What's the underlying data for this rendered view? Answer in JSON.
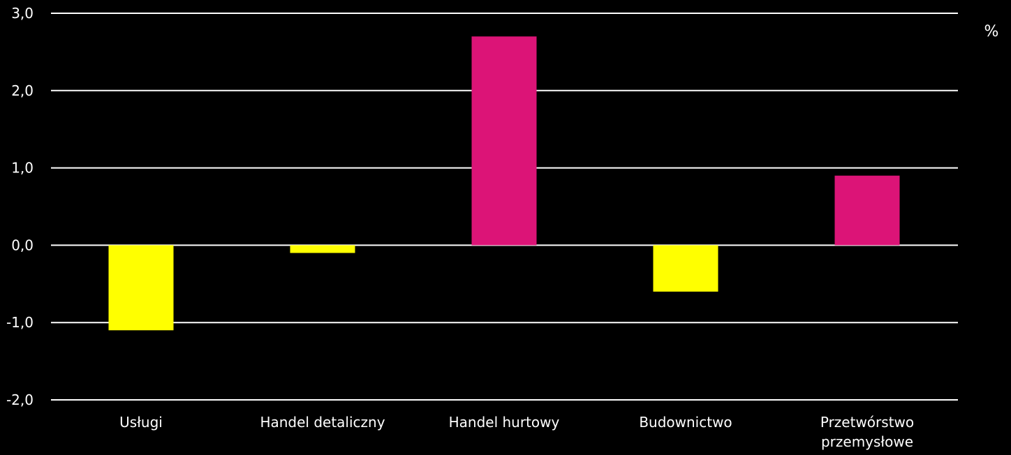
{
  "chart_data": {
    "type": "bar",
    "categories": [
      [
        "Usługi"
      ],
      [
        "Handel detaliczny"
      ],
      [
        "Handel hurtowy"
      ],
      [
        "Budownictwo"
      ],
      [
        "Przetwórstwo",
        "przemysłowe"
      ]
    ],
    "values": [
      -1.1,
      -0.1,
      2.7,
      -0.6,
      0.9
    ],
    "colors": {
      "positive": "#DC1477",
      "negative": "#FFFF00",
      "grid": "#FFFFFF",
      "background": "#000000"
    },
    "ylim": [
      -2.0,
      3.0
    ],
    "yticks": [
      "-2,0",
      "-1,0",
      "0,0",
      "1,0",
      "2,0",
      "3,0"
    ],
    "ytick_values": [
      -2,
      -1,
      0,
      1,
      2,
      3
    ],
    "unit_label": "%",
    "grid": true,
    "title": "",
    "xlabel": "",
    "ylabel": ""
  }
}
